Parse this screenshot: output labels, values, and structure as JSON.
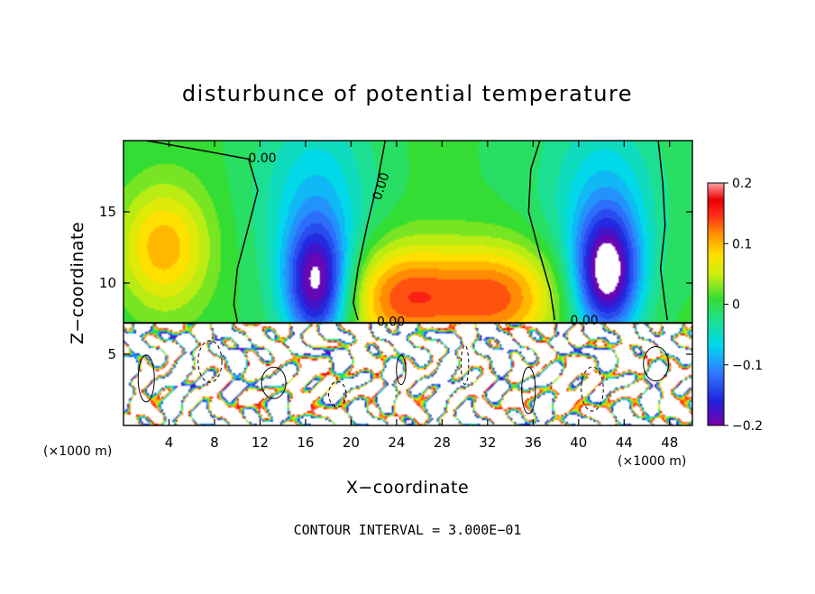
{
  "chart_data": {
    "type": "heatmap",
    "title": "disturbunce of potential temperature",
    "xlabel": "X−coordinate",
    "ylabel": "Z−coordinate",
    "x_unit": "(×1000 m)",
    "xlim": [
      0,
      50
    ],
    "ylim": [
      0,
      20
    ],
    "x_ticks": [
      4,
      8,
      12,
      16,
      20,
      24,
      28,
      32,
      36,
      40,
      44,
      48
    ],
    "y_ticks": [
      5,
      10,
      15
    ],
    "colorbar": {
      "range": [
        -0.2,
        0.2
      ],
      "tick_values": [
        0.2,
        0.1,
        0,
        -0.1,
        -0.2
      ],
      "tick_labels": [
        "0.2",
        "0.1",
        "0",
        "−0.1",
        "−0.2"
      ]
    },
    "contour_label": "0.00",
    "contour_interval_text": "CONTOUR INTERVAL = 3.000E−01",
    "upper_field_features": [
      {
        "kind": "cold",
        "x": 17,
        "z": 9.8,
        "value": -0.19
      },
      {
        "kind": "cold",
        "x": 42.5,
        "z": 10.5,
        "value": -0.2
      },
      {
        "kind": "warm",
        "x": 3.5,
        "z": 12.5,
        "value": 0.1
      },
      {
        "kind": "warm",
        "x": 24.5,
        "z": 9,
        "value": 0.13
      },
      {
        "kind": "warm",
        "x": 33,
        "z": 9,
        "value": 0.13
      }
    ],
    "boundary_layer_top": 7.2,
    "colors": {
      "background_zero": "#33dd33",
      "cold_extreme": "#6600aa",
      "warm_extreme": "#ff9a9a"
    }
  }
}
